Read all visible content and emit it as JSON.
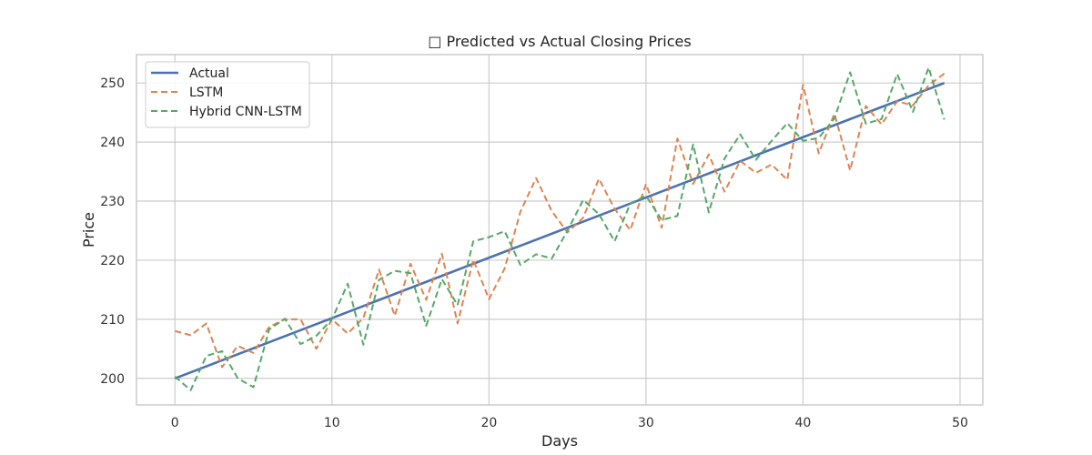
{
  "chart_data": {
    "type": "line",
    "title": "□ Predicted vs Actual Closing Prices",
    "xlabel": "Days",
    "ylabel": "Price",
    "xlim": [
      -2.45,
      51.45
    ],
    "ylim": [
      195.5,
      254.8
    ],
    "xticks": [
      0,
      10,
      20,
      30,
      40,
      50
    ],
    "yticks": [
      200,
      210,
      220,
      230,
      240,
      250
    ],
    "grid": true,
    "legend_position": "top-left",
    "x": [
      0,
      1,
      2,
      3,
      4,
      5,
      6,
      7,
      8,
      9,
      10,
      11,
      12,
      13,
      14,
      15,
      16,
      17,
      18,
      19,
      20,
      21,
      22,
      23,
      24,
      25,
      26,
      27,
      28,
      29,
      30,
      31,
      32,
      33,
      34,
      35,
      36,
      37,
      38,
      39,
      40,
      41,
      42,
      43,
      44,
      45,
      46,
      47,
      48,
      49
    ],
    "series": [
      {
        "name": "Actual",
        "color": "#4c72b0",
        "style": "solid",
        "values": [
          200.0,
          201.02,
          202.04,
          203.06,
          204.08,
          205.1,
          206.12,
          207.14,
          208.16,
          209.18,
          210.2,
          211.22,
          212.24,
          213.27,
          214.29,
          215.31,
          216.33,
          217.35,
          218.37,
          219.39,
          220.41,
          221.43,
          222.45,
          223.47,
          224.49,
          225.51,
          226.53,
          227.55,
          228.57,
          229.59,
          230.61,
          231.63,
          232.65,
          233.67,
          234.69,
          235.71,
          236.73,
          237.76,
          238.78,
          239.8,
          240.82,
          241.84,
          242.86,
          243.88,
          244.9,
          245.92,
          246.94,
          247.96,
          248.98,
          250.0
        ]
      },
      {
        "name": "LSTM",
        "color": "#dd8452",
        "style": "dashed",
        "values": [
          208.0,
          207.3,
          209.3,
          201.9,
          205.5,
          204.3,
          208.7,
          210.0,
          210.0,
          205.0,
          210.0,
          207.6,
          210.2,
          218.4,
          210.6,
          219.4,
          213.3,
          221.1,
          209.3,
          220.1,
          213.4,
          218.6,
          228.2,
          233.9,
          228.3,
          224.7,
          227.2,
          233.8,
          228.7,
          225.1,
          232.9,
          225.5,
          240.6,
          232.9,
          237.9,
          231.6,
          236.8,
          234.8,
          236.2,
          233.6,
          249.7,
          238.1,
          244.8,
          235.2,
          246.1,
          243.0,
          246.9,
          246.2,
          249.6,
          251.6
        ]
      },
      {
        "name": "Hybrid CNN-LSTM",
        "color": "#55a868",
        "style": "dashed",
        "values": [
          200.3,
          198.0,
          203.8,
          204.6,
          200.0,
          198.5,
          208.3,
          210.1,
          205.8,
          207.2,
          210.0,
          216.0,
          205.7,
          216.7,
          218.2,
          217.8,
          208.9,
          216.8,
          212.4,
          223.2,
          223.9,
          224.9,
          219.2,
          221.0,
          220.3,
          225.0,
          230.2,
          227.8,
          223.2,
          229.6,
          230.9,
          226.8,
          227.5,
          239.6,
          228.1,
          237.2,
          241.3,
          237.0,
          240.2,
          243.2,
          240.2,
          240.7,
          244.0,
          251.8,
          243.1,
          243.9,
          251.5,
          245.1,
          252.6,
          243.8
        ]
      }
    ]
  }
}
